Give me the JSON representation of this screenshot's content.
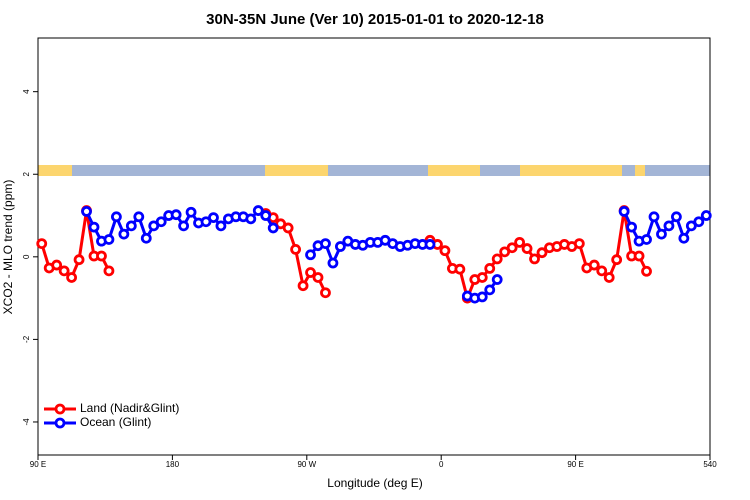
{
  "chart_data": {
    "type": "line",
    "title": "30N-35N June (Ver 10)   2015-01-01 to 2020-12-18",
    "x_label": "Longitude (deg E)",
    "y_label": "XCO2 - MLO trend (ppm)",
    "xlim": [
      90,
      540
    ],
    "xticks": [
      {
        "value": 90,
        "label": "90 E"
      },
      180,
      {
        "value": 270,
        "label": "90 W"
      },
      {
        "value": 360,
        "label": "0"
      },
      {
        "value": 450,
        "label": "90 E"
      },
      540
    ],
    "ylim": [
      -4.8,
      5.3
    ],
    "yticks": [
      -4,
      -2,
      0,
      2,
      4
    ],
    "legend": "bottomleft",
    "x": [
      92.5,
      97.5,
      102.5,
      107.5,
      112.5,
      117.5,
      122.5,
      127.5,
      132.5,
      137.5,
      142.5,
      147.5,
      152.5,
      157.5,
      162.5,
      167.5,
      172.5,
      177.5,
      182.5,
      187.5,
      192.5,
      197.5,
      202.5,
      207.5,
      212.5,
      217.5,
      222.5,
      227.5,
      232.5,
      237.5,
      242.5,
      247.5,
      252.5,
      257.5,
      262.5,
      267.5,
      272.5,
      277.5,
      282.5,
      287.5,
      292.5,
      297.5,
      302.5,
      307.5,
      312.5,
      317.5,
      322.5,
      327.5,
      332.5,
      337.5,
      342.5,
      347.5,
      352.5,
      357.5,
      362.5,
      367.5,
      372.5,
      377.5,
      382.5,
      387.5,
      392.5,
      397.5,
      402.5,
      407.5,
      412.5,
      417.5,
      422.5,
      427.5,
      432.5,
      437.5,
      442.5,
      447.5,
      452.5,
      457.5,
      462.5,
      467.5,
      472.5,
      477.5,
      482.5,
      487.5,
      492.5,
      497.5,
      502.5,
      507.5,
      512.5,
      517.5,
      522.5,
      527.5,
      532.5,
      537.5
    ],
    "series": [
      {
        "name": "Land (Nadir&Glint)",
        "color": "#ff0000",
        "values": [
          0.32,
          -0.27,
          -0.2,
          -0.34,
          -0.5,
          -0.07,
          1.12,
          0.02,
          0.02,
          -0.34,
          null,
          null,
          null,
          null,
          null,
          null,
          null,
          null,
          null,
          null,
          null,
          null,
          null,
          null,
          null,
          null,
          null,
          null,
          null,
          null,
          1.05,
          0.95,
          0.8,
          0.7,
          0.18,
          -0.7,
          -0.38,
          -0.5,
          -0.87,
          null,
          null,
          null,
          null,
          null,
          null,
          null,
          null,
          null,
          null,
          null,
          null,
          null,
          0.4,
          0.3,
          0.15,
          -0.28,
          -0.3,
          -1.0,
          -0.55,
          -0.5,
          -0.28,
          -0.05,
          0.12,
          0.22,
          0.35,
          0.2,
          -0.05,
          0.1,
          0.22,
          0.25,
          0.3,
          0.25,
          0.32,
          -0.27,
          -0.2,
          -0.34,
          -0.5,
          -0.07,
          1.12,
          0.02,
          0.02,
          -0.35,
          null,
          null,
          null,
          null,
          null,
          null,
          null,
          null
        ]
      },
      {
        "name": "Ocean (Glint)",
        "color": "#0000ff",
        "values": [
          null,
          null,
          null,
          null,
          null,
          null,
          1.1,
          0.72,
          0.38,
          0.42,
          0.97,
          0.55,
          0.75,
          0.97,
          0.45,
          0.75,
          0.85,
          1.0,
          1.02,
          0.75,
          1.08,
          0.82,
          0.85,
          0.95,
          0.75,
          0.92,
          0.97,
          0.97,
          0.92,
          1.12,
          1.0,
          0.7,
          null,
          null,
          null,
          null,
          0.05,
          0.27,
          0.32,
          -0.15,
          0.25,
          0.38,
          0.3,
          0.28,
          0.35,
          0.35,
          0.4,
          0.32,
          0.25,
          0.28,
          0.32,
          0.3,
          0.3,
          null,
          null,
          null,
          null,
          -0.95,
          -1.0,
          -0.97,
          -0.8,
          -0.55,
          null,
          null,
          null,
          null,
          null,
          null,
          null,
          null,
          null,
          null,
          null,
          null,
          null,
          null,
          null,
          null,
          1.1,
          0.72,
          0.38,
          0.42,
          0.97,
          0.55,
          0.75,
          0.97,
          0.45,
          0.75,
          0.85,
          1.0
        ]
      }
    ]
  }
}
